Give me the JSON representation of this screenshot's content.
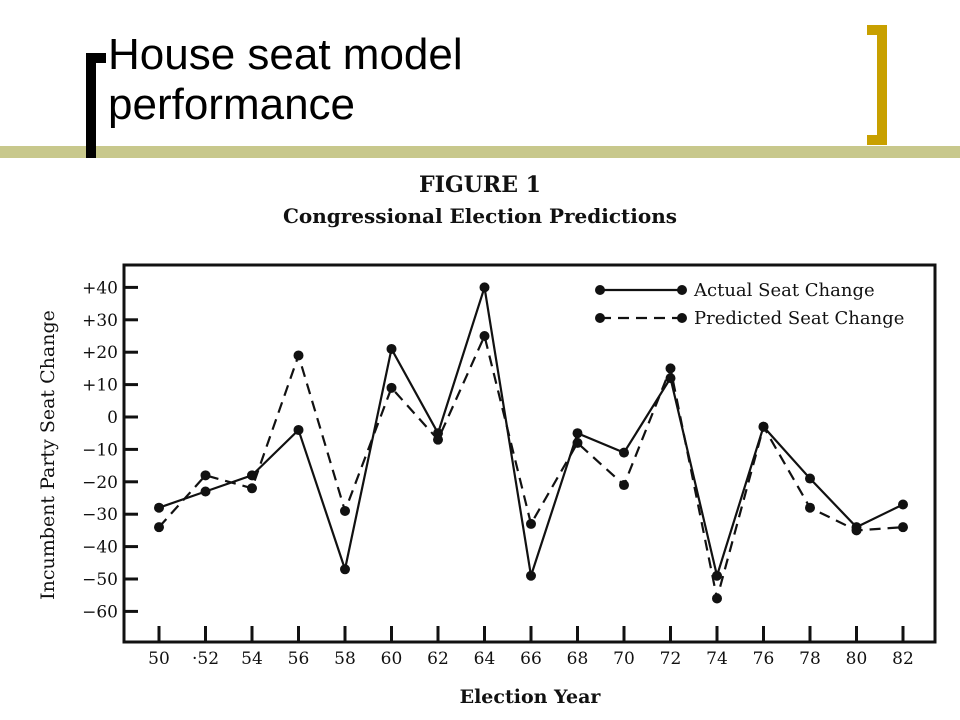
{
  "slide": {
    "title_line1": "House seat model",
    "title_line2": "performance"
  },
  "figure": {
    "label": "FIGURE 1",
    "title": "Congressional Election Predictions"
  },
  "chart_data": {
    "type": "line",
    "title": "Congressional Election Predictions",
    "xlabel": "Election Year",
    "ylabel": "Incumbent Party Seat Change",
    "categories": [
      "50",
      "·52",
      "54",
      "56",
      "58",
      "60",
      "62",
      "64",
      "66",
      "68",
      "70",
      "72",
      "74",
      "76",
      "78",
      "80",
      "82"
    ],
    "y_tick_labels": [
      "+40",
      "+30",
      "+20",
      "+10",
      "0",
      "−10",
      "−20",
      "−30",
      "−40",
      "−50",
      "−60"
    ],
    "y_tick_values": [
      40,
      30,
      20,
      10,
      0,
      -10,
      -20,
      -30,
      -40,
      -50,
      -60
    ],
    "ylim": [
      -65,
      45
    ],
    "grid": false,
    "legend_position": "top-right",
    "series": [
      {
        "name": "Actual Seat Change",
        "style": "solid",
        "values": [
          -28,
          -23,
          -18,
          -4,
          -47,
          21,
          -5,
          40,
          -49,
          -5,
          -11,
          12,
          -49,
          -3,
          -19,
          -34,
          -27
        ]
      },
      {
        "name": "Predicted Seat Change",
        "style": "dashed",
        "values": [
          -34,
          -18,
          -22,
          19,
          -29,
          9,
          -7,
          25,
          -33,
          -8,
          -21,
          15,
          -56,
          -3,
          -28,
          -35,
          -34
        ]
      }
    ]
  }
}
